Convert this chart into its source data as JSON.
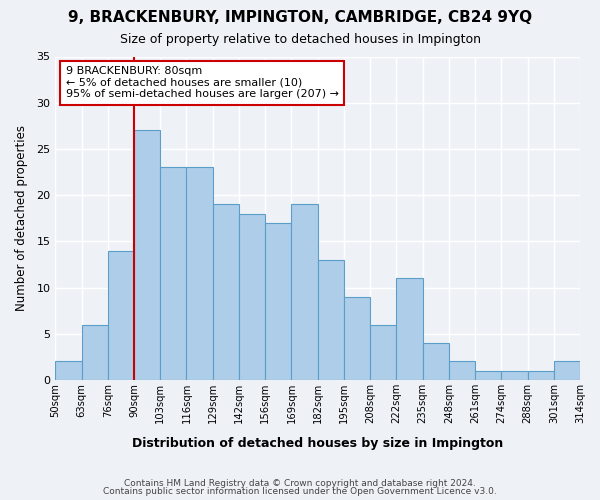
{
  "title": "9, BRACKENBURY, IMPINGTON, CAMBRIDGE, CB24 9YQ",
  "subtitle": "Size of property relative to detached houses in Impington",
  "xlabel": "Distribution of detached houses by size in Impington",
  "ylabel": "Number of detached properties",
  "bar_color": "#aecde8",
  "bar_edge_color": "#5a9ec9",
  "tick_labels": [
    "50sqm",
    "63sqm",
    "76sqm",
    "90sqm",
    "103sqm",
    "116sqm",
    "129sqm",
    "142sqm",
    "156sqm",
    "169sqm",
    "182sqm",
    "195sqm",
    "208sqm",
    "222sqm",
    "235sqm",
    "248sqm",
    "261sqm",
    "274sqm",
    "288sqm",
    "301sqm",
    "314sqm"
  ],
  "values": [
    2,
    6,
    14,
    27,
    23,
    23,
    19,
    18,
    17,
    19,
    13,
    9,
    6,
    11,
    4,
    2,
    1,
    1,
    1,
    2
  ],
  "property_line_bin_index": 2,
  "annotation_title": "9 BRACKENBURY: 80sqm",
  "annotation_line1": "← 5% of detached houses are smaller (10)",
  "annotation_line2": "95% of semi-detached houses are larger (207) →",
  "ylim": [
    0,
    35
  ],
  "yticks": [
    0,
    5,
    10,
    15,
    20,
    25,
    30,
    35
  ],
  "footer1": "Contains HM Land Registry data © Crown copyright and database right 2024.",
  "footer2": "Contains public sector information licensed under the Open Government Licence v3.0.",
  "background_color": "#eef2f7",
  "grid_color": "#ffffff",
  "annotation_box_color": "#ffffff",
  "annotation_box_edge": "#cc0000",
  "property_line_color": "#cc0000"
}
